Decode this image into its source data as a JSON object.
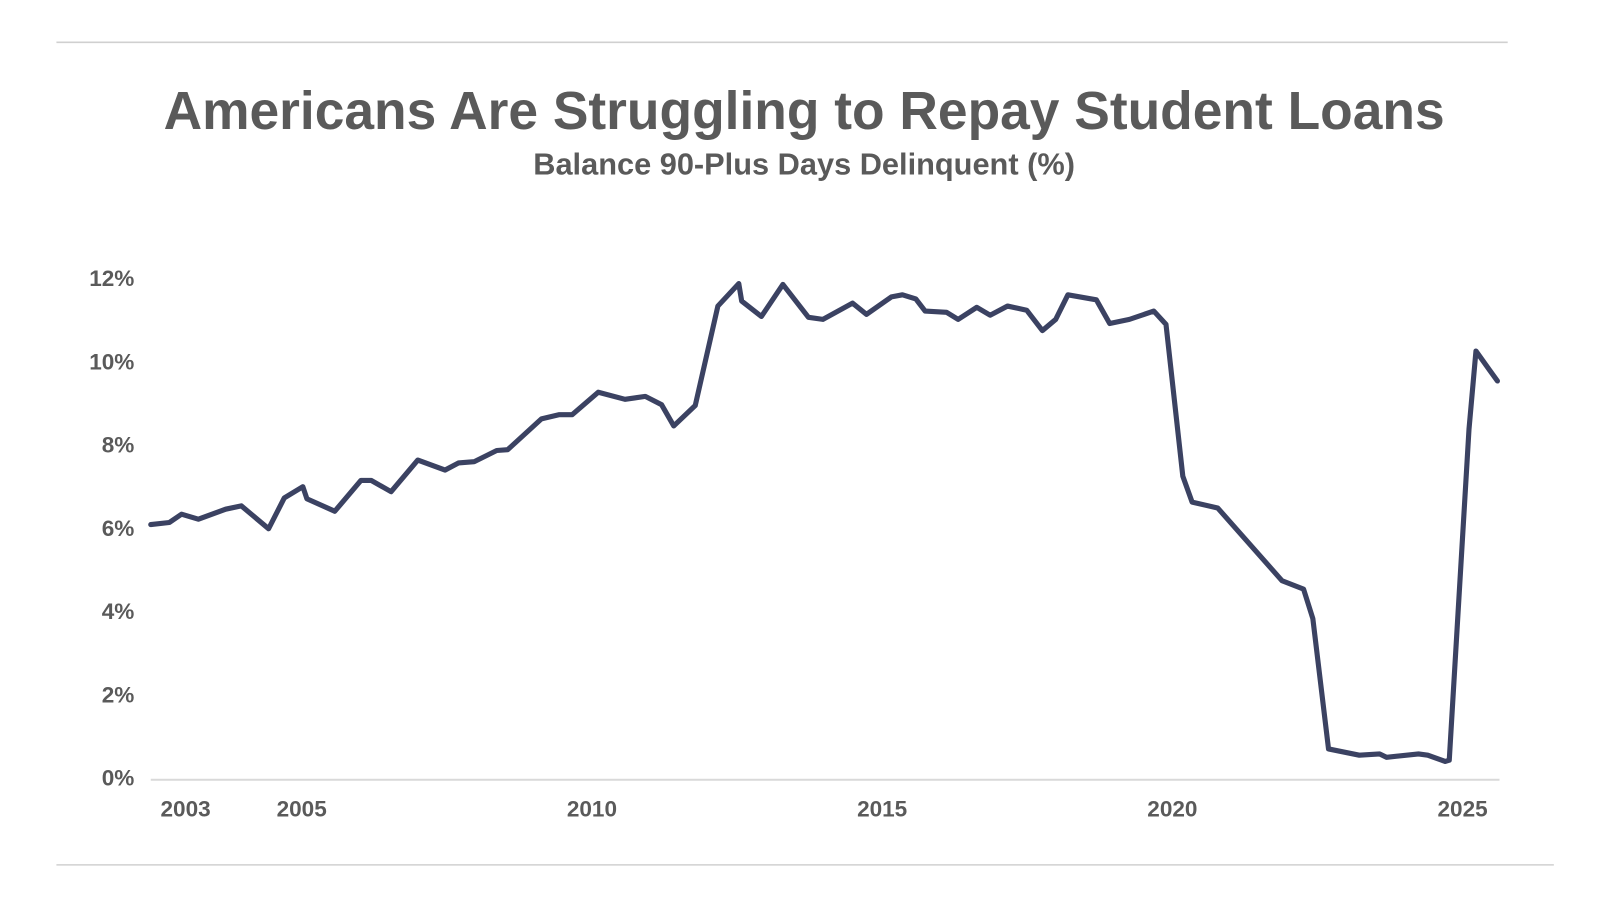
{
  "chart_data": {
    "type": "line",
    "title": "Americans Are Struggling to Repay Student Loans",
    "subtitle": "Balance 90-Plus Days Delinquent (%)",
    "x": [
      2002.4,
      2002.72,
      2002.93,
      2003.22,
      2003.69,
      2003.96,
      2004.43,
      2004.7,
      2005.02,
      2005.09,
      2005.57,
      2006.02,
      2006.2,
      2006.54,
      2007.0,
      2007.47,
      2007.7,
      2007.97,
      2008.36,
      2008.55,
      2009.13,
      2009.43,
      2009.66,
      2010.11,
      2010.57,
      2010.92,
      2011.2,
      2011.41,
      2011.78,
      2012.17,
      2012.53,
      2012.58,
      2012.92,
      2013.29,
      2013.73,
      2013.98,
      2014.49,
      2014.73,
      2015.16,
      2015.35,
      2015.58,
      2015.74,
      2016.11,
      2016.31,
      2016.63,
      2016.86,
      2017.16,
      2017.49,
      2017.76,
      2017.99,
      2018.2,
      2018.69,
      2018.92,
      2019.26,
      2019.68,
      2019.89,
      2020.18,
      2020.34,
      2020.78,
      2021.89,
      2022.26,
      2022.42,
      2022.69,
      2023.22,
      2023.57,
      2023.69,
      2024.24,
      2024.4,
      2024.7,
      2024.77,
      2025.11,
      2025.23,
      2025.46,
      2025.6
    ],
    "series": [
      {
        "name": "Balance 90-Plus Days Delinquent",
        "color": "#3b4262",
        "values": [
          6.13,
          6.18,
          6.38,
          6.26,
          6.5,
          6.58,
          6.03,
          6.77,
          7.04,
          6.75,
          6.45,
          7.19,
          7.19,
          6.92,
          7.68,
          7.44,
          7.61,
          7.64,
          7.91,
          7.93,
          8.67,
          8.77,
          8.77,
          9.31,
          9.14,
          9.21,
          9.01,
          8.5,
          8.99,
          11.38,
          11.92,
          11.5,
          11.13,
          11.9,
          11.11,
          11.06,
          11.45,
          11.18,
          11.6,
          11.65,
          11.55,
          11.26,
          11.23,
          11.06,
          11.35,
          11.16,
          11.38,
          11.28,
          10.79,
          11.06,
          11.65,
          11.53,
          10.96,
          11.06,
          11.26,
          10.94,
          7.29,
          6.67,
          6.53,
          4.78,
          4.58,
          3.87,
          0.74,
          0.59,
          0.62,
          0.54,
          0.62,
          0.59,
          0.44,
          0.47,
          8.42,
          10.3,
          9.85,
          9.58
        ]
      }
    ],
    "xlim": [
      2002.4,
      2025.6
    ],
    "xticks": [
      2003,
      2005,
      2010,
      2015,
      2020,
      2025
    ],
    "ylim": [
      0,
      12
    ],
    "yticks": [
      {
        "value": 0,
        "label": "0%"
      },
      {
        "value": 2,
        "label": "2%"
      },
      {
        "value": 4,
        "label": "4%"
      },
      {
        "value": 6,
        "label": "6%"
      },
      {
        "value": 8,
        "label": "8%"
      },
      {
        "value": 10,
        "label": "10%"
      },
      {
        "value": 12,
        "label": "12%"
      }
    ],
    "grid": false
  }
}
